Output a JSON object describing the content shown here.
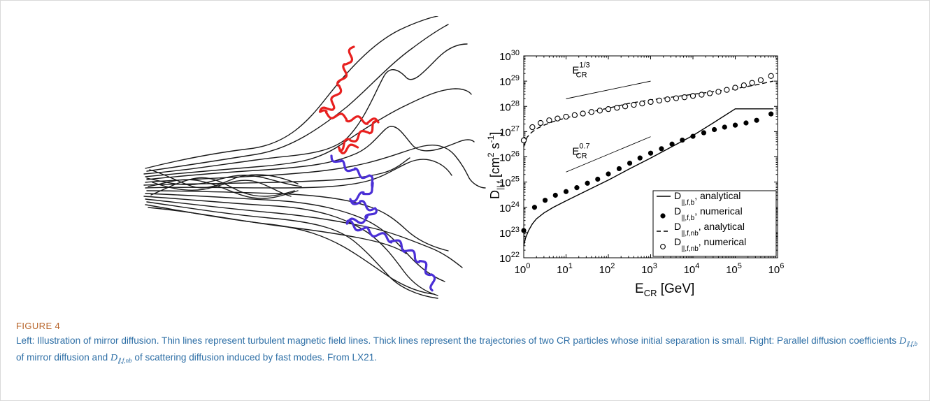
{
  "figure": {
    "label": "FIGURE 4",
    "caption": {
      "part1": "Left: Illustration of mirror diffusion. Thin lines represent turbulent magnetic field lines. Thick lines represent the trajectories of two CR particles whose initial separation is small. Right: Parallel diffusion coefficients ",
      "sym1_base": "D",
      "sym1_sub": "∥,f,b",
      "part2": " of mirror diffusion and ",
      "sym2_base": "D",
      "sym2_sub": "∥,f,nb",
      "part3": " of scattering diffusion induced by fast modes. From LX21."
    }
  },
  "illustration": {
    "particle_colors": [
      "#e8201f",
      "#4a2fd6"
    ],
    "field_line_color": "#1a1a1a"
  },
  "chart_data": {
    "type": "scatter",
    "xscale": "log",
    "yscale": "log",
    "xlim": [
      1,
      1000000
    ],
    "ylim": [
      1e+22,
      1e+30
    ],
    "xlabel": {
      "base": "E",
      "sub": "CR",
      "rest": " [GeV]"
    },
    "ylabel": {
      "base": "D",
      "sub": "||,f",
      "rest": " [cm",
      "sup1": "2",
      "mid": " s",
      "sup2": "-1",
      "end": "]"
    },
    "xticks": [
      {
        "value": 1,
        "base": "10",
        "exp": "0"
      },
      {
        "value": 10,
        "base": "10",
        "exp": "1"
      },
      {
        "value": 100,
        "base": "10",
        "exp": "2"
      },
      {
        "value": 1000,
        "base": "10",
        "exp": "3"
      },
      {
        "value": 10000,
        "base": "10",
        "exp": "4"
      },
      {
        "value": 100000,
        "base": "10",
        "exp": "5"
      },
      {
        "value": 1000000,
        "base": "10",
        "exp": "6"
      }
    ],
    "yticks": [
      {
        "value": 1e+22,
        "base": "10",
        "exp": "22"
      },
      {
        "value": 1e+23,
        "base": "10",
        "exp": "23"
      },
      {
        "value": 1e+24,
        "base": "10",
        "exp": "24"
      },
      {
        "value": 1e+25,
        "base": "10",
        "exp": "25"
      },
      {
        "value": 1e+26,
        "base": "10",
        "exp": "26"
      },
      {
        "value": 1e+27,
        "base": "10",
        "exp": "27"
      },
      {
        "value": 1e+28,
        "base": "10",
        "exp": "28"
      },
      {
        "value": 1e+29,
        "base": "10",
        "exp": "29"
      },
      {
        "value": 1e+30,
        "base": "10",
        "exp": "30"
      }
    ],
    "annotations": [
      {
        "base": "E",
        "sub": "CR",
        "sup": "1/3",
        "x": 14,
        "y": 2e+29,
        "line": [
          [
            10,
            2e+28
          ],
          [
            1000,
            1e+29
          ]
        ]
      },
      {
        "base": "E",
        "sub": "CR",
        "sup": "0.7",
        "x": 14,
        "y": 1.2e+26,
        "line": [
          [
            10,
            2.5e+25
          ],
          [
            1000,
            6.3e+26
          ]
        ]
      }
    ],
    "series": [
      {
        "name": "D||,f,b, analytical",
        "style": "solid",
        "x": [
          1,
          1.1,
          1.3,
          1.6,
          2,
          3,
          5,
          10,
          30,
          100,
          300,
          1000,
          3000,
          10000,
          30000,
          100000,
          300000,
          800000
        ],
        "y": [
          3e+22,
          6e+22,
          1.2e+23,
          2.2e+23,
          3.5e+23,
          6e+23,
          1e+24,
          1.8e+24,
          4.5e+24,
          1.2e+25,
          3.2e+25,
          9e+25,
          2.4e+26,
          7e+26,
          2.2e+27,
          8e+27,
          8e+27,
          8e+27
        ]
      },
      {
        "name": "D||,f,b, numerical",
        "style": "filled",
        "x": [
          1,
          1.8,
          3.2,
          5.6,
          10,
          18,
          32,
          56,
          100,
          180,
          320,
          560,
          1000,
          1800,
          3200,
          5600,
          10000,
          18000,
          32000,
          56000,
          100000,
          180000,
          320000,
          700000
        ],
        "y": [
          1.2e+23,
          1e+24,
          1.9e+24,
          3e+24,
          4.2e+24,
          6e+24,
          9e+24,
          1.3e+25,
          2.1e+25,
          3.4e+25,
          5.6e+25,
          9e+25,
          1.4e+26,
          2.1e+26,
          3.2e+26,
          4.6e+26,
          6.5e+26,
          9e+26,
          1.2e+27,
          1.5e+27,
          1.8e+27,
          2.2e+27,
          2.8e+27,
          5e+27
        ]
      },
      {
        "name": "D||,f,nb, analytical",
        "style": "dashed",
        "x": [
          1,
          1.2,
          1.5,
          2,
          3,
          5,
          10,
          30,
          100,
          300,
          1000,
          3000,
          10000,
          30000,
          100000,
          300000,
          800000
        ],
        "y": [
          2.5e+26,
          6e+26,
          9e+26,
          1.3e+27,
          1.8e+27,
          2.5e+27,
          3.5e+27,
          5.5e+27,
          8.5e+27,
          1.3e+28,
          1.8e+28,
          2.3e+28,
          3e+28,
          3.8e+28,
          5e+28,
          7e+28,
          1e+29
        ]
      },
      {
        "name": "D||,f,nb, numerical",
        "style": "hollow",
        "x": [
          1,
          1.6,
          2.5,
          4,
          6.3,
          10,
          16,
          25,
          40,
          63,
          100,
          160,
          250,
          400,
          630,
          1000,
          1600,
          2500,
          4000,
          6300,
          10000,
          16000,
          25000,
          40000,
          63000,
          100000,
          160000,
          250000,
          400000,
          700000
        ],
        "y": [
          4.5e+26,
          1.5e+27,
          2.2e+27,
          2.8e+27,
          3.3e+27,
          3.9e+27,
          4.5e+27,
          5.2e+27,
          6e+27,
          6.8e+27,
          7.8e+27,
          8.8e+27,
          1e+28,
          1.15e+28,
          1.3e+28,
          1.5e+28,
          1.7e+28,
          1.9e+28,
          2.1e+28,
          2.3e+28,
          2.6e+28,
          2.9e+28,
          3.3e+28,
          3.8e+28,
          4.5e+28,
          5.5e+28,
          6.8e+28,
          8.5e+28,
          1.1e+29,
          1.6e+29
        ]
      }
    ],
    "legend": {
      "placement": "bottom-right",
      "entries": [
        {
          "base": "D",
          "sub": "||,f,b",
          "tail": ", analytical",
          "style": "solid"
        },
        {
          "base": "D",
          "sub": "||,f,b",
          "tail": ", numerical",
          "style": "filled"
        },
        {
          "base": "D",
          "sub": "||,f,nb",
          "tail": ", analytical",
          "style": "dashed"
        },
        {
          "base": "D",
          "sub": "||,f,nb",
          "tail": ", numerical",
          "style": "hollow"
        }
      ]
    }
  }
}
